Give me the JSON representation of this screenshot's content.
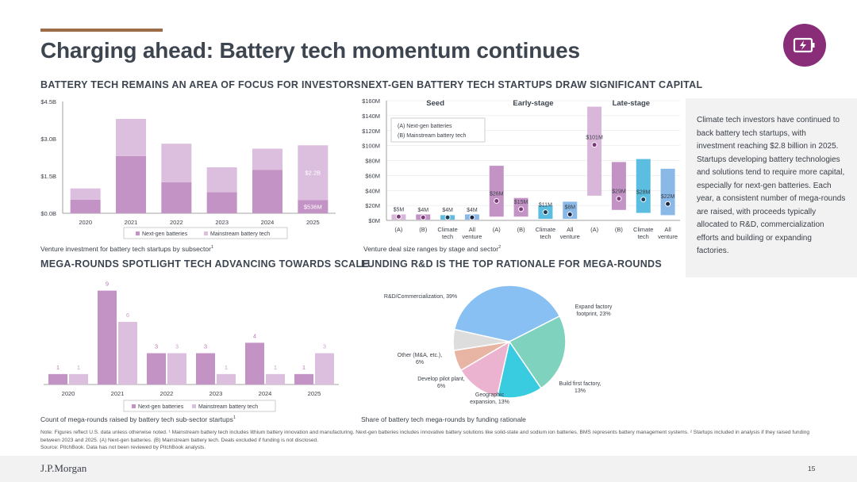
{
  "colors": {
    "accent_bar": "#9c6b48",
    "badge": "#8a2d78",
    "next_gen": "#c493c6",
    "mainstream": "#dcbfdf",
    "seed": "#d9b7db",
    "early_a": "#c493c6",
    "climate_tech": "#5bbde0",
    "all_venture": "#8ab9e8",
    "late_a": "#d9b7db",
    "late_b": "#c493c6",
    "late_climate": "#5bbde0",
    "late_all": "#8ab9e8",
    "pie": [
      "#88c0f3",
      "#7fd2bd",
      "#39cbe0",
      "#ecb3d0",
      "#e8b4a3",
      "#dddddd"
    ]
  },
  "badge_icon": "battery-charging-icon",
  "title": "Charging ahead: Battery tech momentum continues",
  "sections": {
    "s1_title": "BATTERY TECH REMAINS AN AREA OF FOCUS FOR INVESTORS",
    "s1_caption": "Venture investment for battery tech startups by subsector",
    "s1_caption_sup": "1",
    "s2_title": "NEXT-GEN BATTERY TECH STARTUPS DRAW SIGNIFICANT CAPITAL",
    "s2_caption": "Venture deal size ranges by stage and sector",
    "s2_caption_sup": "2",
    "s3_title": "MEGA-ROUNDS SPOTLIGHT TECH ADVANCING TOWARDS SCALE",
    "s3_caption": "Count of mega-rounds raised by battery tech sub-sector startups",
    "s3_caption_sup": "1",
    "s4_title": "FUNDING R&D IS THE TOP RATIONALE FOR MEGA-ROUNDS",
    "s4_caption": "Share of battery tech mega-rounds by funding rationale"
  },
  "sidebar_text": "Climate tech investors have continued to back battery tech startups, with investment reaching $2.8 billion in 2025. Startups developing battery technologies and solutions tend to require more capital, especially for next-gen batteries. Each year, a consistent number of mega-rounds are raised, with proceeds typically allocated to R&D, commercialization efforts and building or expanding factories.",
  "note_text": "Note: Figures reflect U.S. data unless otherwise noted. ¹ Mainstream battery tech includes lithium battery innovation and manufacturing. Next-gen batteries includes innovative battery solutions like solid-state and sodium ion batteries. BMS represents battery management systems. ² Startups included in analysis if they raised funding between 2023 and 2025. (A) Next-gen batteries. (B) Mainstream battery tech. Deals excluded if funding is not disclosed.",
  "source_text": "Source: PitchBook. Data has not been reviewed by PitchBook analysts.",
  "brand": "J.P.Morgan",
  "page_number": "15",
  "chart_data": [
    {
      "type": "bar",
      "stacked": true,
      "categories": [
        "2020",
        "2021",
        "2022",
        "2023",
        "2024",
        "2025"
      ],
      "series": [
        {
          "name": "Next-gen batteries",
          "values": [
            0.55,
            2.3,
            1.25,
            0.85,
            1.75,
            0.536
          ]
        },
        {
          "name": "Mainstream battery tech",
          "values": [
            0.45,
            1.5,
            1.55,
            1.0,
            0.85,
            2.2
          ]
        }
      ],
      "y_ticks": [
        "$0.0B",
        "$1.5B",
        "$3.0B",
        "$4.5B"
      ],
      "ylim": [
        0,
        4.5
      ],
      "data_labels": [
        {
          "category": "2025",
          "series": "Mainstream battery tech",
          "text": "$2.2B"
        },
        {
          "category": "2025",
          "series": "Next-gen batteries",
          "text": "$536M"
        }
      ],
      "legend": "bottom",
      "grid": false
    },
    {
      "type": "range",
      "ylim": [
        0,
        160
      ],
      "y_ticks": [
        "$0M",
        "$20M",
        "$40M",
        "$60M",
        "$80M",
        "$100M",
        "$120M",
        "$140M",
        "$160M"
      ],
      "groups": [
        "Seed",
        "Early-stage",
        "Late-stage"
      ],
      "categories": [
        "(A)",
        "(B)",
        "Climate tech",
        "All venture",
        "(A)",
        "(B)",
        "Climate tech",
        "All venture",
        "(A)",
        "(B)",
        "Climate tech",
        "All venture"
      ],
      "legend_lines": [
        "(A)   Next-gen batteries",
        "(B)   Mainstream battery tech"
      ],
      "ranges": [
        [
          1,
          8
        ],
        [
          1,
          8
        ],
        [
          1,
          7
        ],
        [
          1,
          8
        ],
        [
          5,
          73
        ],
        [
          5,
          30
        ],
        [
          2,
          20
        ],
        [
          2,
          25
        ],
        [
          33,
          152
        ],
        [
          14,
          78
        ],
        [
          10,
          82
        ],
        [
          7,
          69
        ]
      ],
      "medians": [
        5,
        4,
        4,
        4,
        26,
        15,
        11,
        8,
        101,
        29,
        28,
        22
      ],
      "median_labels": [
        "$5M",
        "$4M",
        "$4M",
        "$4M",
        "$26M",
        "$15M",
        "$11M",
        "$8M",
        "$101M",
        "$29M",
        "$28M",
        "$22M"
      ],
      "grid": true
    },
    {
      "type": "bar",
      "categories": [
        "2020",
        "2021",
        "2022",
        "2023",
        "2024",
        "2025"
      ],
      "series": [
        {
          "name": "Next-gen batteries",
          "values": [
            1,
            9,
            3,
            3,
            4,
            1
          ]
        },
        {
          "name": "Mainstream battery tech",
          "values": [
            1,
            6,
            3,
            1,
            1,
            3
          ]
        }
      ],
      "ylim": [
        0,
        9.5
      ],
      "legend": "bottom",
      "grid": false
    },
    {
      "type": "pie",
      "labels": [
        "R&D/Commercialization, 39%",
        "Expand factory footprint, 23%",
        "Build first factory, 13%",
        "Geographic expansion, 13%",
        "Develop pilot plant, 6%",
        "Other (M&A, etc.), 6%"
      ],
      "values": [
        39,
        23,
        13,
        13,
        6,
        6
      ]
    }
  ]
}
